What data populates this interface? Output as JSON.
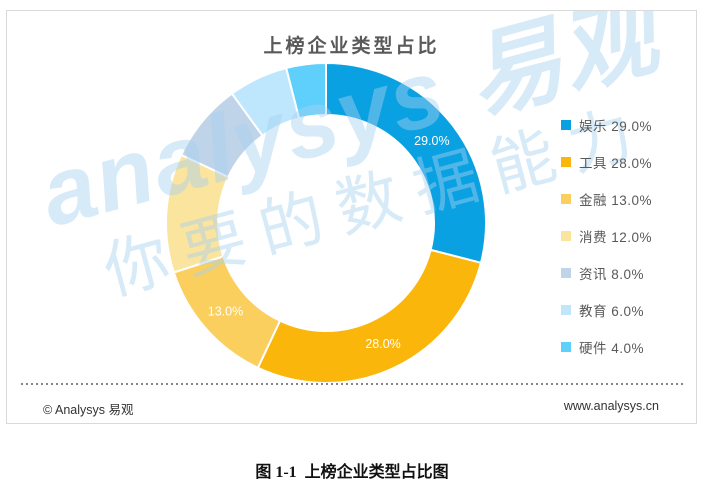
{
  "chart_data": {
    "type": "pie",
    "subtype": "donut",
    "title": "上榜企业类型占比",
    "categories": [
      "娱乐",
      "工具",
      "金融",
      "消费",
      "资讯",
      "教育",
      "硬件"
    ],
    "values": [
      29.0,
      28.0,
      13.0,
      12.0,
      8.0,
      6.0,
      4.0
    ],
    "unit": "%",
    "colors": [
      "#0AA1E2",
      "#FBB60B",
      "#FBCF5E",
      "#FBE49E",
      "#BFD3E9",
      "#BEE7FD",
      "#5FCFFB"
    ],
    "slice_labels": [
      "29.0%",
      "28.0%",
      "13.0%",
      "",
      "",
      "",
      ""
    ],
    "legend_entries": [
      "娱乐 29.0%",
      "工具 28.0%",
      "金融 13.0%",
      "消费 12.0%",
      "资讯 8.0%",
      "教育 6.0%",
      "硬件 4.0%"
    ],
    "legend_position": "right",
    "start_angle_deg": 0,
    "direction": "clockwise",
    "donut_hole": true,
    "slice_label_color": "#ffffff"
  },
  "watermark": {
    "line1": "analysys 易观",
    "line2": "你要的数据能力"
  },
  "footer": {
    "copyright": "© Analysys 易观",
    "website": "www.analysys.cn"
  },
  "caption": "图 1-1  上榜企业类型占比图"
}
